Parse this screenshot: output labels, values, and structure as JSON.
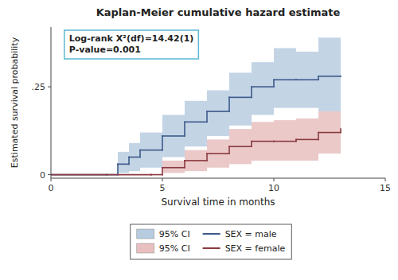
{
  "chart_data": {
    "type": "step",
    "title": "Kaplan-Meier cumulative hazard estimate",
    "xlabel": "Survival time in months",
    "ylabel": "Estimated survival probability",
    "xlim": [
      0,
      15
    ],
    "ylim": [
      -0.01,
      0.42
    ],
    "xticks": [
      0,
      5,
      10,
      15
    ],
    "yticks": [
      0,
      {
        "value": 0.25,
        "label": ".25"
      }
    ],
    "grid": false,
    "legend": "bottom",
    "annotation": [
      "Log-rank X²(df)=14.42(1)",
      "P-value=0.001"
    ],
    "series": [
      {
        "name": "SEX = male",
        "color": "#3d5a8a",
        "ci_name": "95% CI",
        "ci_color": "#b8cce0",
        "x": [
          0,
          2.5,
          3.0,
          3.5,
          4.0,
          5.0,
          6.0,
          7.0,
          8.0,
          9.0,
          10.0,
          11.0,
          12.0,
          13.0
        ],
        "values": [
          0,
          0,
          0.03,
          0.05,
          0.07,
          0.11,
          0.15,
          0.18,
          0.22,
          0.25,
          0.27,
          0.27,
          0.28,
          0.28
        ],
        "ci_upper": [
          0,
          0,
          0.065,
          0.09,
          0.12,
          0.17,
          0.21,
          0.24,
          0.29,
          0.32,
          0.36,
          0.35,
          0.39,
          0.39
        ],
        "ci_lower": [
          0,
          0,
          0.005,
          0.01,
          0.02,
          0.05,
          0.08,
          0.11,
          0.14,
          0.17,
          0.19,
          0.19,
          0.18,
          0.18
        ]
      },
      {
        "name": "SEX = female",
        "color": "#8b3a40",
        "ci_name": "95% CI",
        "ci_color": "#e8c0c0",
        "x": [
          0,
          4.5,
          5.0,
          6.0,
          7.0,
          8.0,
          9.0,
          10.0,
          11.0,
          12.0,
          13.0
        ],
        "values": [
          0,
          0,
          0.02,
          0.04,
          0.06,
          0.08,
          0.095,
          0.095,
          0.1,
          0.12,
          0.13
        ],
        "ci_upper": [
          0,
          0,
          0.04,
          0.07,
          0.1,
          0.13,
          0.15,
          0.155,
          0.16,
          0.18,
          0.195
        ],
        "ci_lower": [
          0,
          0,
          0.005,
          0.01,
          0.02,
          0.03,
          0.04,
          0.04,
          0.04,
          0.06,
          0.07
        ]
      }
    ]
  }
}
